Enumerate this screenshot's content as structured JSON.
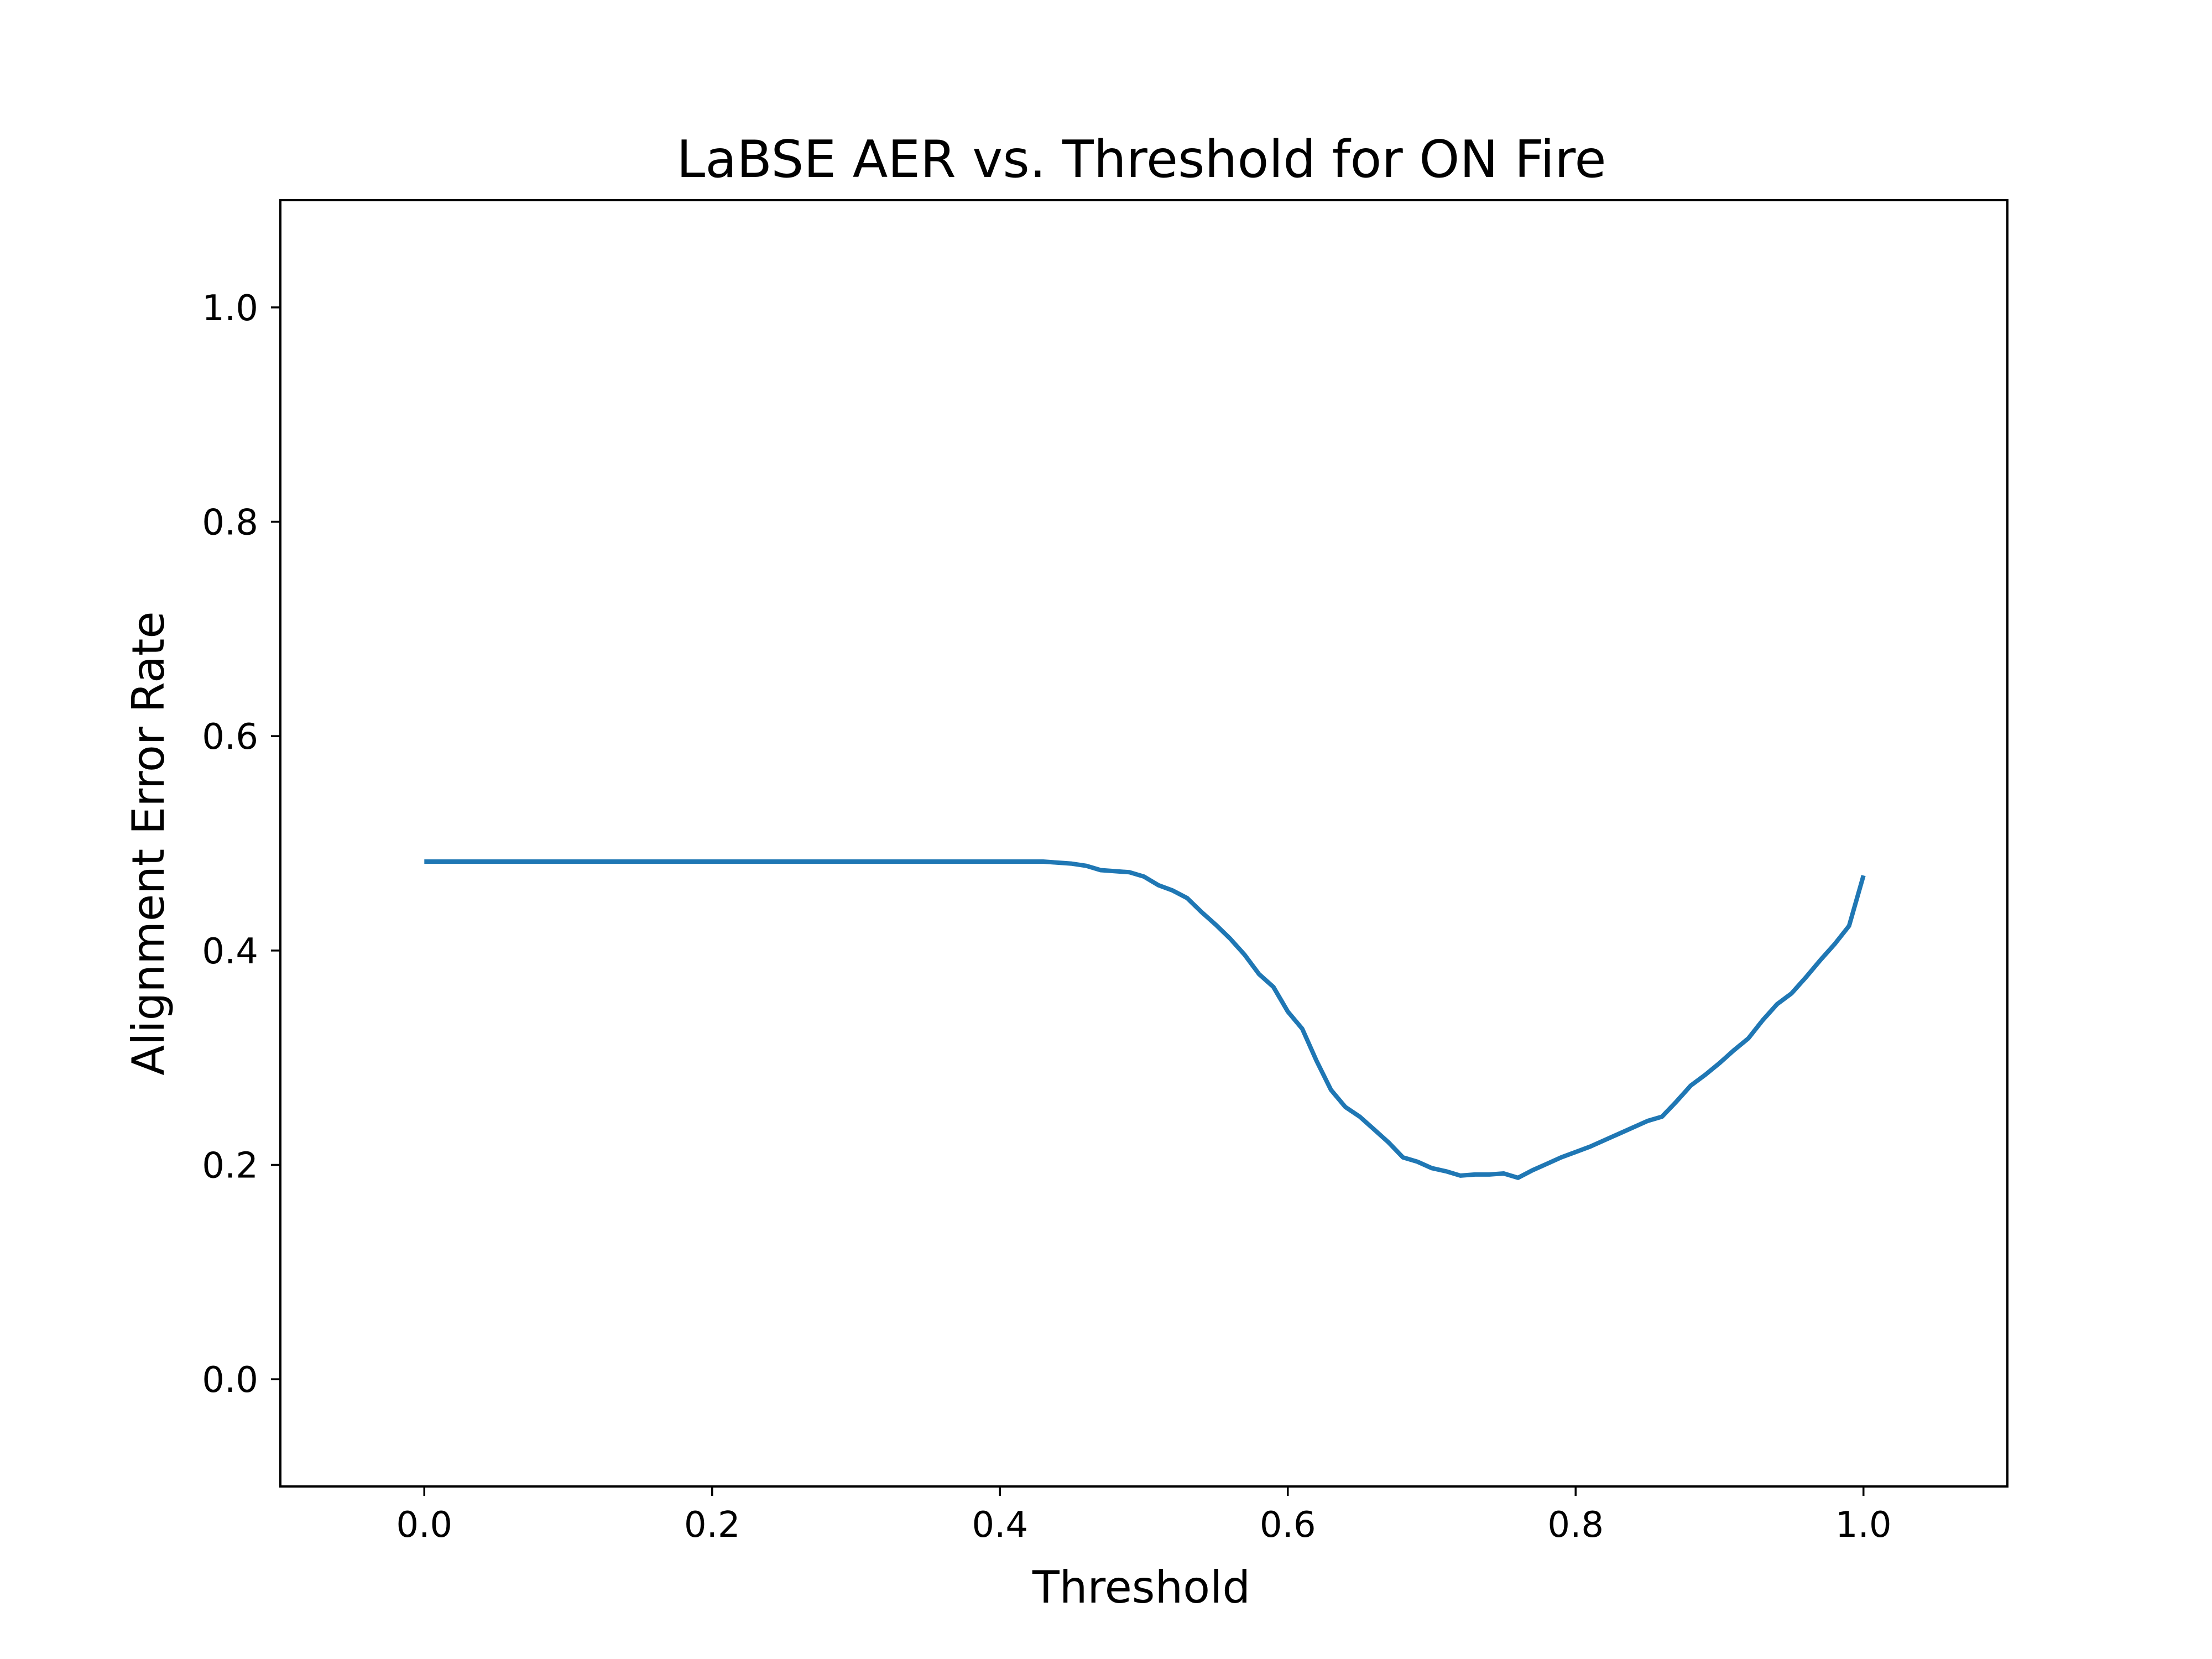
{
  "chart_data": {
    "type": "line",
    "title": "LaBSE AER vs. Threshold for ON Fire",
    "xlabel": "Threshold",
    "ylabel": "Alignment Error Rate",
    "xlim": [
      -0.1,
      1.1
    ],
    "ylim": [
      -0.1,
      1.1
    ],
    "xticks": [
      0.0,
      0.2,
      0.4,
      0.6,
      0.8,
      1.0
    ],
    "xtick_labels": [
      "0.0",
      "0.2",
      "0.4",
      "0.6",
      "0.8",
      "1.0"
    ],
    "yticks": [
      0.0,
      0.2,
      0.4,
      0.6,
      0.8,
      1.0
    ],
    "ytick_labels": [
      "0.0",
      "0.2",
      "0.4",
      "0.6",
      "0.8",
      "1.0"
    ],
    "grid": false,
    "series": [
      {
        "color": "#1f77b4",
        "x": [
          0.0,
          0.43,
          0.44,
          0.45,
          0.46,
          0.47,
          0.48,
          0.49,
          0.5,
          0.51,
          0.52,
          0.53,
          0.54,
          0.55,
          0.56,
          0.57,
          0.58,
          0.59,
          0.6,
          0.61,
          0.62,
          0.63,
          0.64,
          0.65,
          0.66,
          0.67,
          0.68,
          0.69,
          0.7,
          0.71,
          0.72,
          0.73,
          0.74,
          0.75,
          0.76,
          0.77,
          0.78,
          0.79,
          0.8,
          0.81,
          0.82,
          0.83,
          0.84,
          0.85,
          0.86,
          0.87,
          0.88,
          0.89,
          0.9,
          0.91,
          0.92,
          0.93,
          0.94,
          0.95,
          0.96,
          0.97,
          0.98,
          0.99,
          1.0
        ],
        "y": [
          0.483,
          0.483,
          0.482,
          0.481,
          0.479,
          0.475,
          0.474,
          0.473,
          0.469,
          0.461,
          0.456,
          0.449,
          0.436,
          0.424,
          0.411,
          0.396,
          0.378,
          0.366,
          0.343,
          0.327,
          0.297,
          0.27,
          0.254,
          0.245,
          0.233,
          0.221,
          0.207,
          0.203,
          0.197,
          0.194,
          0.19,
          0.191,
          0.191,
          0.192,
          0.188,
          0.195,
          0.201,
          0.207,
          0.212,
          0.217,
          0.223,
          0.229,
          0.235,
          0.241,
          0.245,
          0.259,
          0.274,
          0.284,
          0.295,
          0.307,
          0.318,
          0.335,
          0.35,
          0.36,
          0.375,
          0.391,
          0.406,
          0.423,
          0.47
        ]
      }
    ]
  }
}
